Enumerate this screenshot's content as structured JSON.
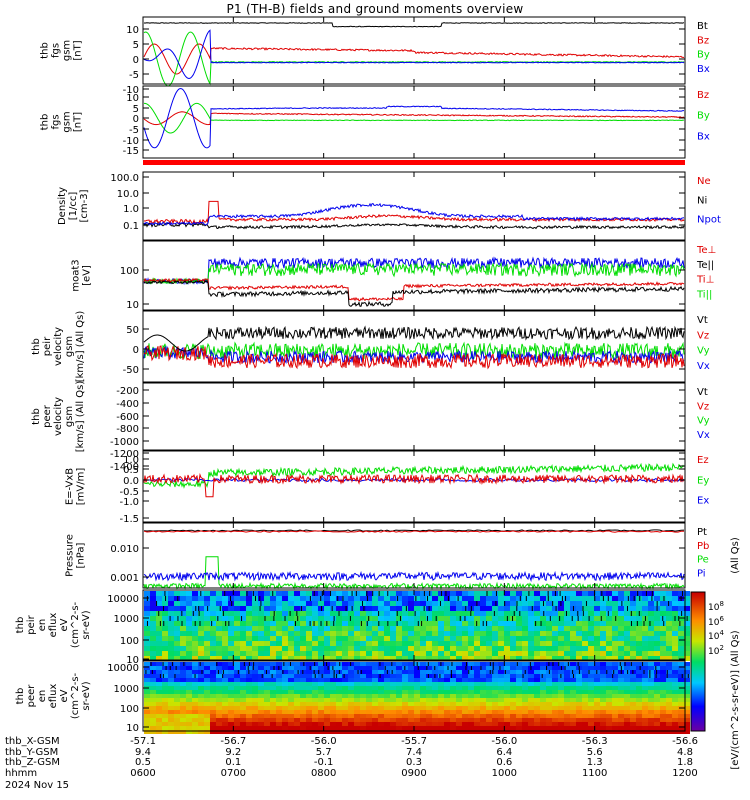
{
  "title": "P1 (TH-B) fields and ground moments overview",
  "colors": {
    "black": "#000000",
    "red": "#e00000",
    "green": "#00dd00",
    "blue": "#0000ee"
  },
  "panels": [
    {
      "id": "p1",
      "ylabel": [
        "thb",
        "fgs",
        "gsm",
        "[nT]"
      ],
      "ticks": [
        "10",
        "5",
        "0",
        "-5",
        "-10"
      ],
      "legend": [
        {
          "t": "Bt",
          "c": "black"
        },
        {
          "t": "Bz",
          "c": "red"
        },
        {
          "t": "By",
          "c": "green"
        },
        {
          "t": "Bx",
          "c": "blue"
        }
      ]
    },
    {
      "id": "p2",
      "ylabel": [
        "thb",
        "fgs",
        "gsm",
        "[nT]"
      ],
      "ticks": [
        "10",
        "5",
        "0",
        "-5",
        "-10",
        "-15"
      ],
      "legend": [
        {
          "t": "Bz",
          "c": "red"
        },
        {
          "t": "By",
          "c": "green"
        },
        {
          "t": "Bx",
          "c": "blue"
        }
      ]
    },
    {
      "id": "p3",
      "ylabel": [
        "Density",
        "[1/cc]",
        "[cm-3]"
      ],
      "ticks": [
        "100.0",
        "10.0",
        "1.0",
        "0.1"
      ],
      "legend": [
        {
          "t": "Ne",
          "c": "red"
        },
        {
          "t": "Ni",
          "c": "black"
        },
        {
          "t": "Npot",
          "c": "blue"
        }
      ]
    },
    {
      "id": "p4",
      "ylabel": [
        "moat3",
        "[eV]"
      ],
      "ticks": [
        "100",
        "10"
      ],
      "legend": [
        {
          "t": "Te⊥",
          "c": "red"
        },
        {
          "t": "Te||",
          "c": "black"
        },
        {
          "t": "Ti⊥",
          "c": "red"
        },
        {
          "t": "Ti||",
          "c": "green"
        }
      ]
    },
    {
      "id": "p5",
      "ylabel": [
        "thb",
        "peir",
        "velocity",
        "gsm",
        "[km/s] (All Qs)"
      ],
      "ticks": [
        "50",
        "0",
        "-50"
      ],
      "legend": [
        {
          "t": "Vt",
          "c": "black"
        },
        {
          "t": "Vz",
          "c": "red"
        },
        {
          "t": "Vy",
          "c": "green"
        },
        {
          "t": "Vx",
          "c": "blue"
        }
      ]
    },
    {
      "id": "p6",
      "ylabel": [
        "thb",
        "peer",
        "velocity",
        "gsm",
        "[km/s] (All Qs)"
      ],
      "ticks": [
        "-200",
        "-400",
        "-600",
        "-800",
        "-1000",
        "-1200",
        "-1400"
      ],
      "legend": [
        {
          "t": "Vt",
          "c": "black"
        },
        {
          "t": "Vz",
          "c": "red"
        },
        {
          "t": "Vy",
          "c": "green"
        },
        {
          "t": "Vx",
          "c": "blue"
        }
      ]
    },
    {
      "id": "p7",
      "ylabel": [
        "E=-VxB",
        "[mV/m]"
      ],
      "ticks": [
        "1.0",
        "0.5",
        "0.0",
        "-0.5",
        "-1.0",
        "-1.5"
      ],
      "legend": [
        {
          "t": "Ez",
          "c": "red"
        },
        {
          "t": "Ey",
          "c": "green"
        },
        {
          "t": "Ex",
          "c": "blue"
        }
      ]
    },
    {
      "id": "p8",
      "ylabel": [
        "Pressure",
        "[nPa]"
      ],
      "ticks": [
        "0.010",
        "0.001"
      ],
      "legend": [
        {
          "t": "Pt",
          "c": "black"
        },
        {
          "t": "Pb",
          "c": "red"
        },
        {
          "t": "Pe",
          "c": "green"
        },
        {
          "t": "Pi",
          "c": "blue"
        }
      ],
      "side_label": "(All Qs)"
    },
    {
      "id": "p9",
      "ylabel": [
        "thb",
        "peir",
        "en",
        "eflux",
        "eV",
        "(cm^2-s-",
        "sr-eV)"
      ],
      "ticks": [
        "10000",
        "1000",
        "100",
        "10"
      ]
    },
    {
      "id": "p10",
      "ylabel": [
        "thb",
        "peer",
        "en",
        "eflux",
        "eV",
        "(cm^2-s-",
        "sr-eV)"
      ],
      "ticks": [
        "10000",
        "1000",
        "100",
        "10"
      ]
    }
  ],
  "colorbar": {
    "ticks": [
      "10^8",
      "10^6",
      "10^4",
      "10^2"
    ],
    "label": "[eV/(cm^2-s-sr-eV)] (All Qs)"
  },
  "xaxis": {
    "rows": [
      {
        "name": "thb_X-GSM",
        "values": [
          "-57.1",
          "-56.7",
          "-56.0",
          "-55.7",
          "-56.0",
          "-56.3",
          "-56.6"
        ]
      },
      {
        "name": "thb_Y-GSM",
        "values": [
          "9.4",
          "9.2",
          "5.7",
          "7.4",
          "6.4",
          "5.6",
          "4.8"
        ]
      },
      {
        "name": "thb_Z-GSM",
        "values": [
          "0.5",
          "0.1",
          "-0.1",
          "0.3",
          "0.6",
          "1.3",
          "1.8"
        ]
      },
      {
        "name": "hhmm",
        "values": [
          "0600",
          "0700",
          "0800",
          "0900",
          "1000",
          "1100",
          "1200"
        ]
      }
    ],
    "date": "2024 Nov 15"
  },
  "chart_data": {
    "type": "line",
    "title": "P1 (TH-B) fields and ground moments overview",
    "x": [
      "0600",
      "0700",
      "0800",
      "0900",
      "1000",
      "1100",
      "1200"
    ],
    "xlabel": "hhmm",
    "panels": [
      {
        "name": "thb fgs gsm [nT]",
        "ylim": [
          -12,
          13
        ],
        "series": [
          {
            "name": "Bt",
            "values": [
              12,
              12,
              10.5,
              11,
              10.6,
              10.6,
              10.4
            ]
          },
          {
            "name": "Bz",
            "values": [
              1,
              1,
              4,
              3,
              2,
              1,
              0.5
            ]
          },
          {
            "name": "By",
            "values": [
              5,
              -1,
              -1,
              -1,
              -1,
              -0.5,
              0
            ]
          },
          {
            "name": "Bx",
            "values": [
              -8,
              -1,
              -1.5,
              -0.5,
              -1,
              -1,
              -1
            ]
          }
        ]
      },
      {
        "name": "thb fgs gsm [nT]",
        "ylim": [
          -19,
          12
        ],
        "series": [
          {
            "name": "Bz",
            "values": [
              -2,
              2,
              4,
              3,
              2,
              1,
              0.5
            ]
          },
          {
            "name": "By",
            "values": [
              8,
              -1,
              -1,
              -1,
              -1,
              -0.5,
              0
            ]
          },
          {
            "name": "Bx",
            "values": [
              -10,
              3,
              4,
              6,
              5,
              4,
              4
            ]
          }
        ]
      },
      {
        "name": "Density [cm-3]",
        "yscale": "log",
        "ylim": [
          0.05,
          150
        ],
        "series": [
          {
            "name": "Ne",
            "values": [
              0.15,
              0.2,
              0.25,
              0.4,
              0.25,
              0.2,
              0.15
            ]
          },
          {
            "name": "Ni",
            "values": [
              0.1,
              0.07,
              0.08,
              0.12,
              0.08,
              0.07,
              0.08
            ]
          },
          {
            "name": "Npot",
            "values": [
              0.1,
              0.3,
              0.4,
              1.0,
              0.4,
              0.35,
              0.3
            ]
          }
        ]
      },
      {
        "name": "moat3 [eV]",
        "yscale": "log",
        "ylim": [
          7,
          700
        ],
        "series": [
          {
            "name": "Te⊥",
            "values": [
              40,
              25,
              20,
              25,
              30,
              30,
              35
            ]
          },
          {
            "name": "Te||",
            "values": [
              40,
              18,
              15,
              20,
              25,
              25,
              25
            ]
          },
          {
            "name": "Ti⊥",
            "values": [
              40,
              60,
              60,
              70,
              60,
              70,
              70
            ]
          },
          {
            "name": "Ti||",
            "values": [
              40,
              150,
              130,
              140,
              130,
              150,
              150
            ]
          }
        ]
      },
      {
        "name": "thb peir velocity gsm [km/s] (All Qs)",
        "ylim": [
          -75,
          75
        ],
        "series": [
          {
            "name": "Vt",
            "values": [
              20,
              30,
              30,
              40,
              45,
              40,
              45
            ]
          },
          {
            "name": "Vz",
            "values": [
              -5,
              -30,
              -30,
              -30,
              -30,
              -30,
              -30
            ]
          },
          {
            "name": "Vy",
            "values": [
              0,
              0,
              0,
              0,
              0,
              0,
              -5
            ]
          },
          {
            "name": "Vx",
            "values": [
              -10,
              -10,
              -20,
              -15,
              -20,
              -20,
              -20
            ]
          }
        ]
      },
      {
        "name": "thb peer velocity gsm [km/s] (All Qs)",
        "ylim": [
          -1500,
          0
        ],
        "series": []
      },
      {
        "name": "E=-VxB [mV/m]",
        "ylim": [
          -1.7,
          1.0
        ],
        "series": [
          {
            "name": "Ez",
            "values": [
              0,
              -0.1,
              0,
              0.1,
              0,
              0,
              0
            ]
          },
          {
            "name": "Ey",
            "values": [
              0,
              0.3,
              0.3,
              0.3,
              0.4,
              0.45,
              0.5
            ]
          },
          {
            "name": "Ex",
            "values": [
              0,
              0,
              0,
              0,
              0,
              0,
              0
            ]
          }
        ]
      },
      {
        "name": "Pressure [nPa]",
        "yscale": "log",
        "ylim": [
          0.0004,
          0.08
        ],
        "series": [
          {
            "name": "Pt",
            "values": [
              0.04,
              0.045,
              0.04,
              0.035,
              0.04,
              0.04,
              0.04
            ]
          },
          {
            "name": "Pb",
            "values": [
              0.038,
              0.043,
              0.037,
              0.033,
              0.038,
              0.038,
              0.037
            ]
          },
          {
            "name": "Pe",
            "values": [
              0.0005,
              0.005,
              0.0005,
              0.0006,
              0.0005,
              0.0005,
              0.0005
            ]
          },
          {
            "name": "Pi",
            "values": [
              0.001,
              0.0012,
              0.0011,
              0.001,
              0.001,
              0.0011,
              0.0011
            ]
          }
        ]
      }
    ]
  }
}
